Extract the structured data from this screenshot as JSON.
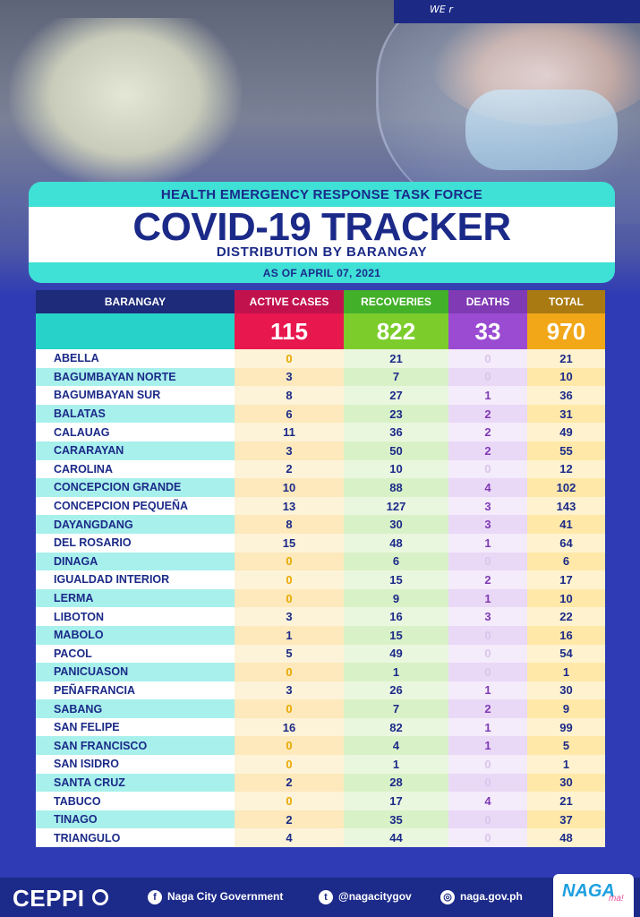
{
  "header": {
    "band_text": "WE r",
    "org": "HEALTH EMERGENCY RESPONSE TASK FORCE",
    "title": "COVID-19 TRACKER",
    "subtitle": "DISTRIBUTION BY BARANGAY",
    "as_of": "AS OF APRIL 07, 2021"
  },
  "table": {
    "columns": [
      "BARANGAY",
      "ACTIVE CASES",
      "RECOVERIES",
      "DEATHS",
      "TOTAL"
    ],
    "totals": [
      "115",
      "822",
      "33",
      "970"
    ],
    "colors": {
      "active": "#e8174e",
      "recoveries": "#7ccd2c",
      "deaths": "#9b4bd2",
      "total": "#f1a718",
      "barangay": "#27d3c8"
    },
    "rows": [
      [
        "ABELLA",
        "0",
        "21",
        "0",
        "21"
      ],
      [
        "BAGUMBAYAN NORTE",
        "3",
        "7",
        "0",
        "10"
      ],
      [
        "BAGUMBAYAN SUR",
        "8",
        "27",
        "1",
        "36"
      ],
      [
        "BALATAS",
        "6",
        "23",
        "2",
        "31"
      ],
      [
        "CALAUAG",
        "11",
        "36",
        "2",
        "49"
      ],
      [
        "CARARAYAN",
        "3",
        "50",
        "2",
        "55"
      ],
      [
        "CAROLINA",
        "2",
        "10",
        "0",
        "12"
      ],
      [
        "CONCEPCION GRANDE",
        "10",
        "88",
        "4",
        "102"
      ],
      [
        "CONCEPCION PEQUEÑA",
        "13",
        "127",
        "3",
        "143"
      ],
      [
        "DAYANGDANG",
        "8",
        "30",
        "3",
        "41"
      ],
      [
        "DEL ROSARIO",
        "15",
        "48",
        "1",
        "64"
      ],
      [
        "DINAGA",
        "0",
        "6",
        "0",
        "6"
      ],
      [
        "IGUALDAD INTERIOR",
        "0",
        "15",
        "2",
        "17"
      ],
      [
        "LERMA",
        "0",
        "9",
        "1",
        "10"
      ],
      [
        "LIBOTON",
        "3",
        "16",
        "3",
        "22"
      ],
      [
        "MABOLO",
        "1",
        "15",
        "0",
        "16"
      ],
      [
        "PACOL",
        "5",
        "49",
        "0",
        "54"
      ],
      [
        "PANICUASON",
        "0",
        "1",
        "0",
        "1"
      ],
      [
        "PEÑAFRANCIA",
        "3",
        "26",
        "1",
        "30"
      ],
      [
        "SABANG",
        "0",
        "7",
        "2",
        "9"
      ],
      [
        "SAN FELIPE",
        "16",
        "82",
        "1",
        "99"
      ],
      [
        "SAN FRANCISCO",
        "0",
        "4",
        "1",
        "5"
      ],
      [
        "SAN ISIDRO",
        "0",
        "1",
        "0",
        "1"
      ],
      [
        "SANTA CRUZ",
        "2",
        "28",
        "0",
        "30"
      ],
      [
        "TABUCO",
        "0",
        "17",
        "4",
        "21"
      ],
      [
        "TINAGO",
        "2",
        "35",
        "0",
        "37"
      ],
      [
        "TRIANGULO",
        "4",
        "44",
        "0",
        "48"
      ]
    ]
  },
  "footer": {
    "brand": "CEPPI",
    "facebook": "Naga City Government",
    "twitter": "@nagacitygov",
    "website": "naga.gov.ph",
    "logo_text": "NAGA",
    "logo_suffix": "ma!",
    "icons": [
      "facebook-icon",
      "twitter-icon",
      "globe-icon"
    ]
  }
}
